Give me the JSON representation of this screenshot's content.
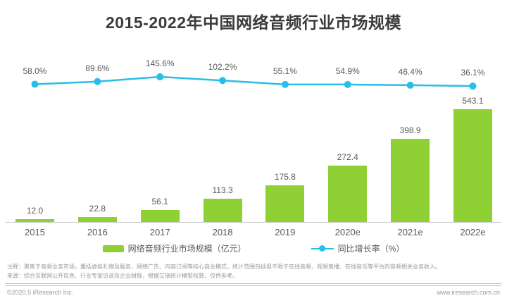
{
  "chart_data": {
    "type": "bar",
    "title": "2015-2022年中国网络音频行业市场规模",
    "categories": [
      "2015",
      "2016",
      "2017",
      "2018",
      "2019",
      "2020e",
      "2021e",
      "2022e"
    ],
    "series": [
      {
        "name": "网络音频行业市场规模（亿元）",
        "type": "bar",
        "color": "#8fd034",
        "values": [
          12.0,
          22.8,
          56.1,
          113.3,
          175.8,
          272.4,
          398.9,
          543.1
        ]
      },
      {
        "name": "同比增长率（%）",
        "type": "line",
        "color": "#29bee8",
        "values": [
          58.0,
          89.6,
          145.6,
          102.2,
          55.1,
          54.9,
          46.4,
          36.1
        ]
      }
    ],
    "bar_value_labels": [
      "12.0",
      "22.8",
      "56.1",
      "113.3",
      "175.8",
      "272.4",
      "398.9",
      "543.1"
    ],
    "line_value_labels": [
      "58.0%",
      "89.6%",
      "145.6%",
      "102.2%",
      "55.1%",
      "54.9%",
      "46.4%",
      "36.1%"
    ],
    "xlabel": "",
    "ylabel": "",
    "ylim_bar": [
      0,
      600
    ],
    "ylim_line": [
      0,
      160
    ],
    "grid": false,
    "axes_visible": false,
    "legend_position": "bottom"
  },
  "footer": {
    "note_line1": "注释：聚焦于音频业务市场，囊括虚拟礼物及服务、网络广告、内容订阅等核心商业模式，统计范围包括但不限于在线音频、视频直播、在线音乐等平台的音频相关业务收入。",
    "note_line2": "来源：综合互联网公开信息、行业专家访谈及企业财报，根据艾瑞统计模型核算，仅供参考。",
    "copyright": "©2020.5 iResearch Inc.",
    "website": "www.iresearch.com.cn"
  }
}
